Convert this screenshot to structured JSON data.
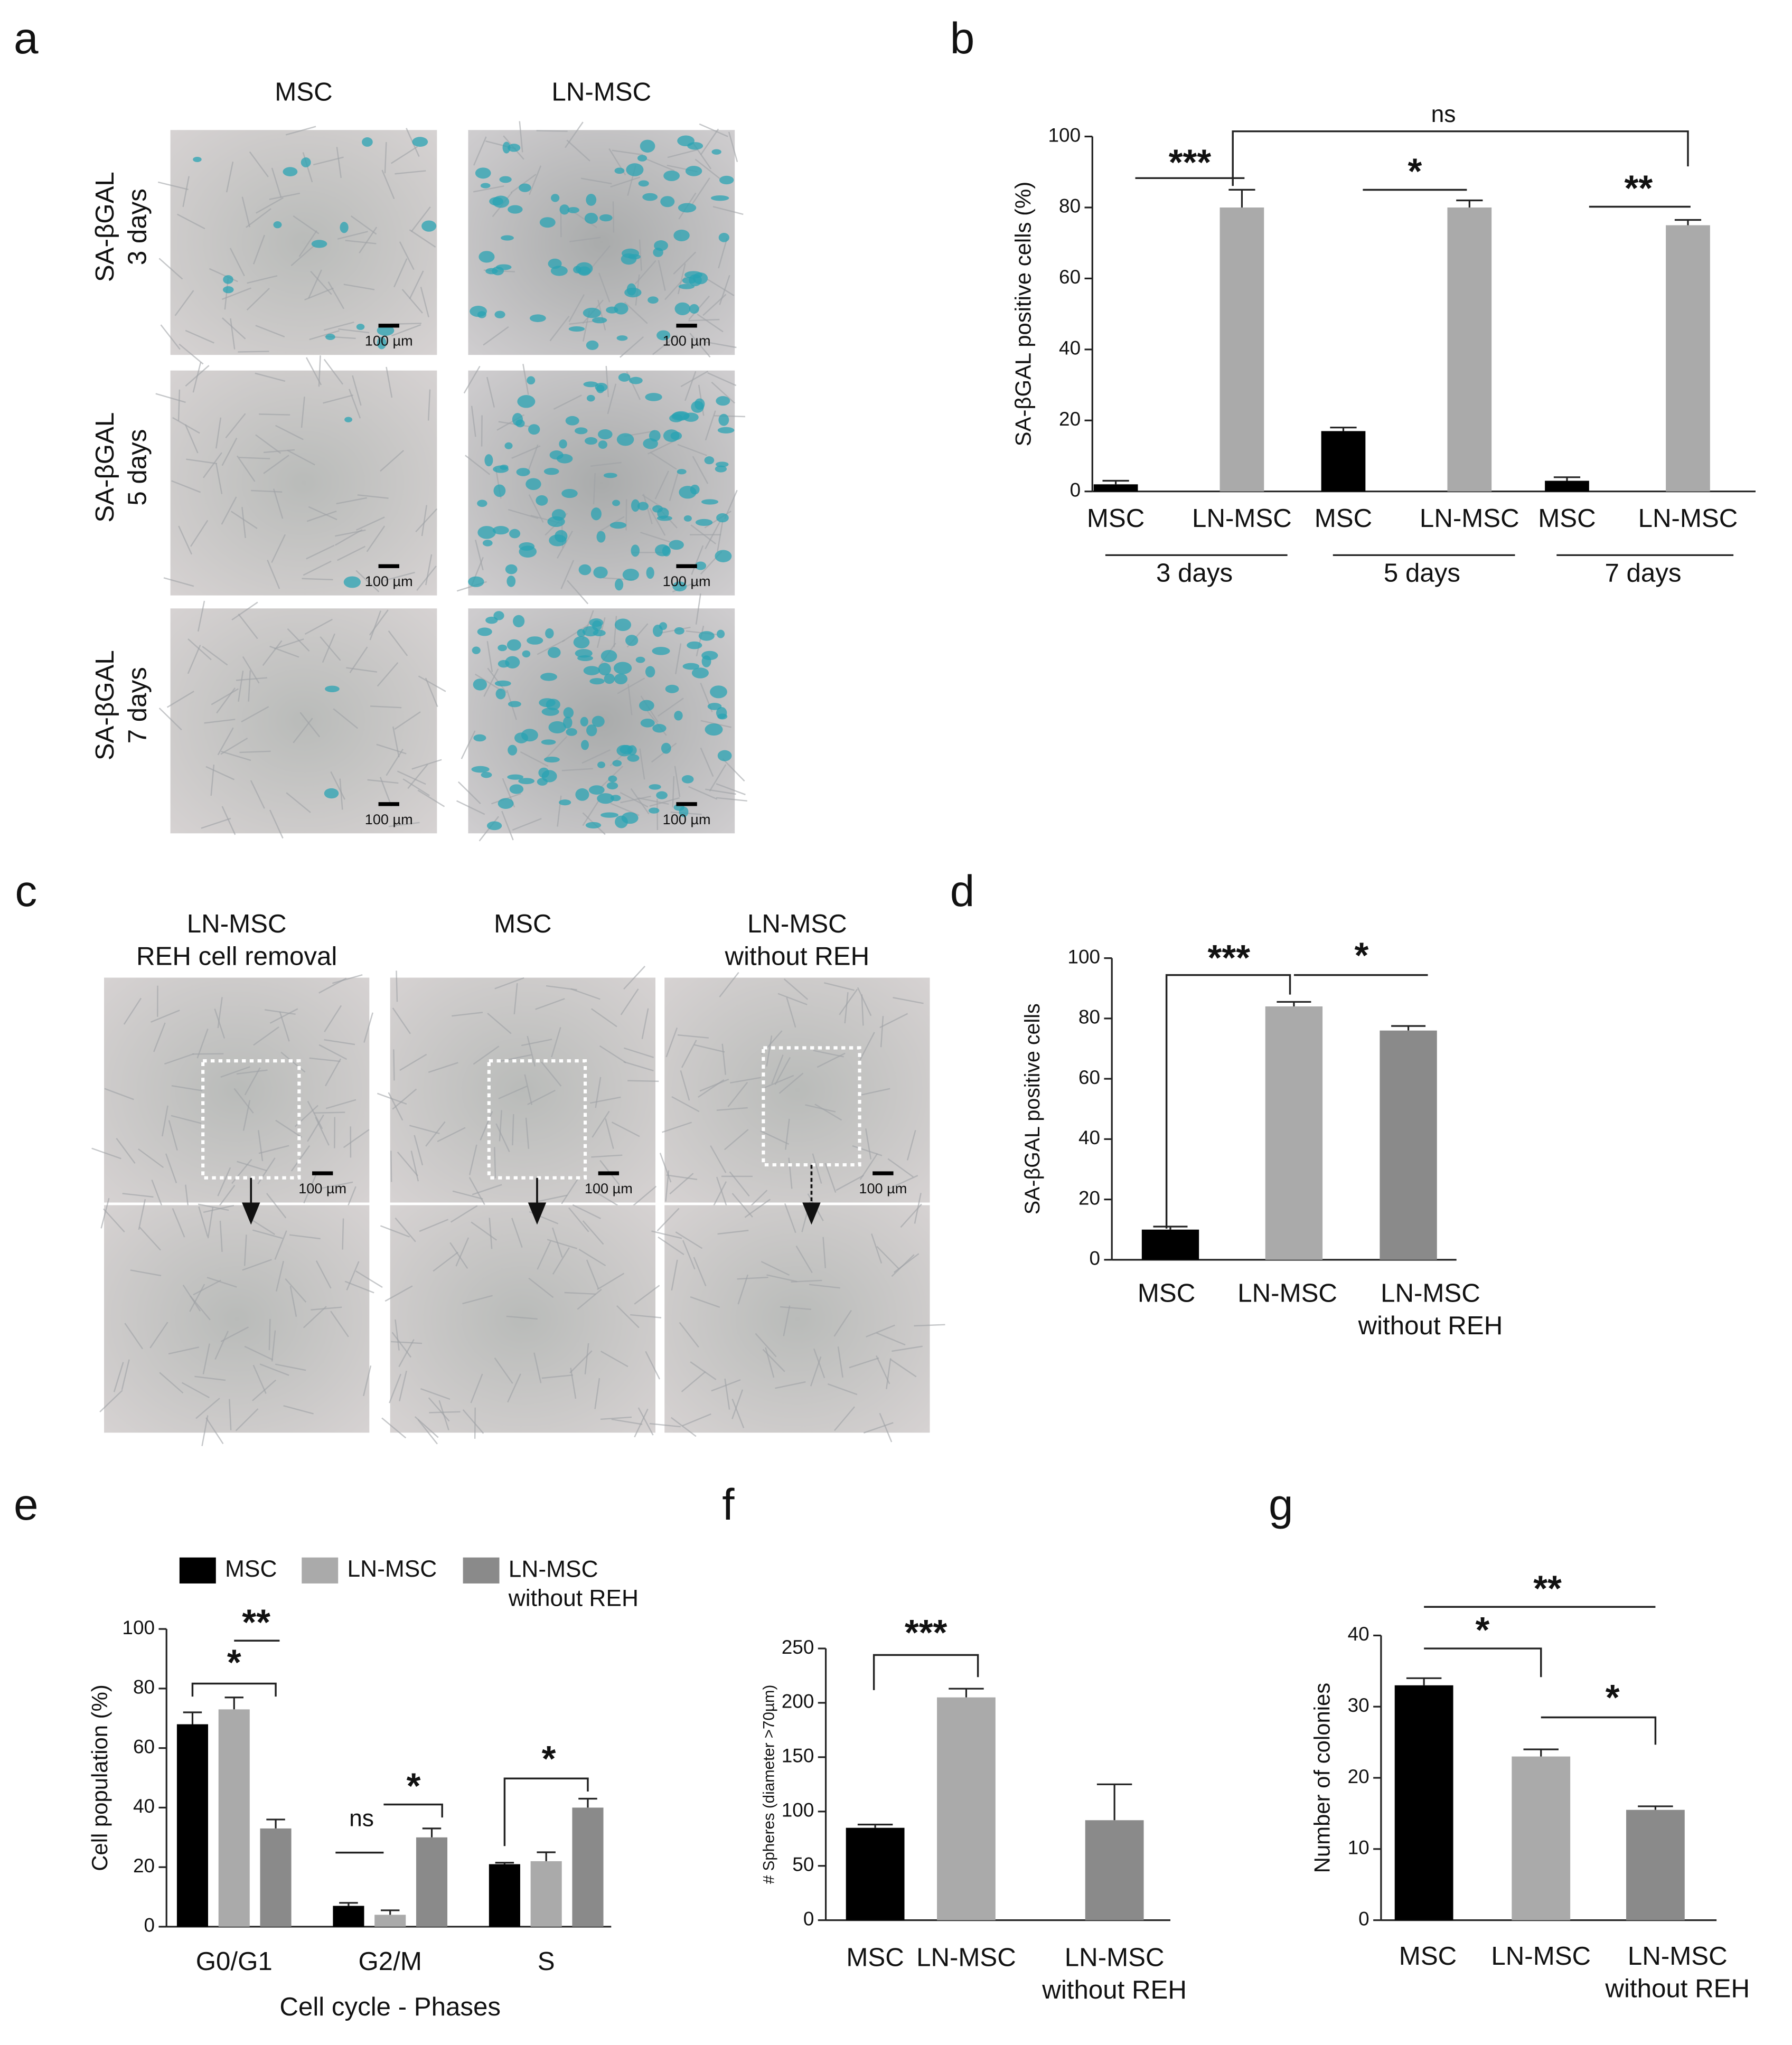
{
  "panel_labels": [
    "a",
    "b",
    "c",
    "d",
    "e",
    "f",
    "g"
  ],
  "images": {
    "a": {
      "columns": [
        "MSC",
        "LN-MSC"
      ],
      "rows": [
        "SA-βGAL\n3 days",
        "SA-βGAL\n5 days",
        "SA-βGAL\n7 days"
      ],
      "scale_bar": "100 µm"
    },
    "c": {
      "columns": [
        "LN-MSC\nREH cell removal",
        "MSC",
        "LN-MSC\nwithout REH"
      ],
      "scale_bar": "100 µm"
    }
  },
  "chart_data": [
    {
      "type": "bar",
      "ylabel": "SA-βGAL positive cells (%)",
      "categories": [
        "MSC",
        "LN-MSC",
        "MSC",
        "LN-MSC",
        "MSC",
        "LN-MSC"
      ],
      "groups": [
        "3 days",
        "5 days",
        "7 days"
      ],
      "values": [
        2,
        80,
        17,
        80,
        3,
        75
      ],
      "errors": [
        1,
        5,
        1,
        2,
        1,
        1.5
      ],
      "colors": [
        "#000000",
        "#aaaaaa",
        "#000000",
        "#aaaaaa",
        "#000000",
        "#aaaaaa"
      ],
      "ylim": [
        0,
        100
      ],
      "yticks": [
        0,
        20,
        40,
        60,
        80,
        100
      ],
      "annotations": [
        "***",
        "*",
        "**",
        "ns"
      ]
    },
    {
      "type": "bar",
      "ylabel": "SA-βGAL positive cells",
      "categories": [
        "MSC",
        "LN-MSC",
        "LN-MSC\nwithout REH"
      ],
      "values": [
        10,
        84,
        76
      ],
      "errors": [
        1,
        1.5,
        1.5
      ],
      "colors": [
        "#000000",
        "#aaaaaa",
        "#8a8a8a"
      ],
      "ylim": [
        0,
        100
      ],
      "yticks": [
        0,
        20,
        40,
        60,
        80,
        100
      ],
      "annotations": [
        "***",
        "*"
      ]
    },
    {
      "type": "grouped_bar",
      "ylabel": "Cell population (%)",
      "xlabel": "Cell cycle - Phases",
      "categories": [
        "G0/G1",
        "G2/M",
        "S"
      ],
      "series": [
        {
          "name": "MSC",
          "color": "#000000",
          "values": [
            68,
            7,
            21
          ],
          "errors": [
            4,
            1,
            0.5
          ]
        },
        {
          "name": "LN-MSC",
          "color": "#aaaaaa",
          "values": [
            73,
            4,
            22
          ],
          "errors": [
            4,
            1.5,
            3
          ]
        },
        {
          "name": "LN-MSC\nwithout REH",
          "color": "#8a8a8a",
          "values": [
            33,
            30,
            40
          ],
          "errors": [
            3,
            3,
            3
          ]
        }
      ],
      "ylim": [
        0,
        100
      ],
      "yticks": [
        0,
        20,
        40,
        60,
        80,
        100
      ],
      "annotations": [
        "**",
        "*",
        "ns",
        "*",
        "*"
      ]
    },
    {
      "type": "bar",
      "ylabel": "# Spheres (diameter >70µm)",
      "categories": [
        "MSC",
        "LN-MSC",
        "LN-MSC\nwithout REH"
      ],
      "values": [
        85,
        205,
        92
      ],
      "errors": [
        3,
        8,
        33
      ],
      "colors": [
        "#000000",
        "#aaaaaa",
        "#8a8a8a"
      ],
      "ylim": [
        0,
        250
      ],
      "yticks": [
        0,
        50,
        100,
        150,
        200,
        250
      ],
      "annotations": [
        "***"
      ]
    },
    {
      "type": "bar",
      "ylabel": "Number of colonies",
      "categories": [
        "MSC",
        "LN-MSC",
        "LN-MSC\nwithout REH"
      ],
      "values": [
        33,
        23,
        15.5
      ],
      "errors": [
        1,
        1,
        0.5
      ],
      "colors": [
        "#000000",
        "#aaaaaa",
        "#8a8a8a"
      ],
      "ylim": [
        0,
        40
      ],
      "yticks": [
        0,
        10,
        20,
        30,
        40
      ],
      "annotations": [
        "**",
        "*",
        "*"
      ]
    }
  ]
}
